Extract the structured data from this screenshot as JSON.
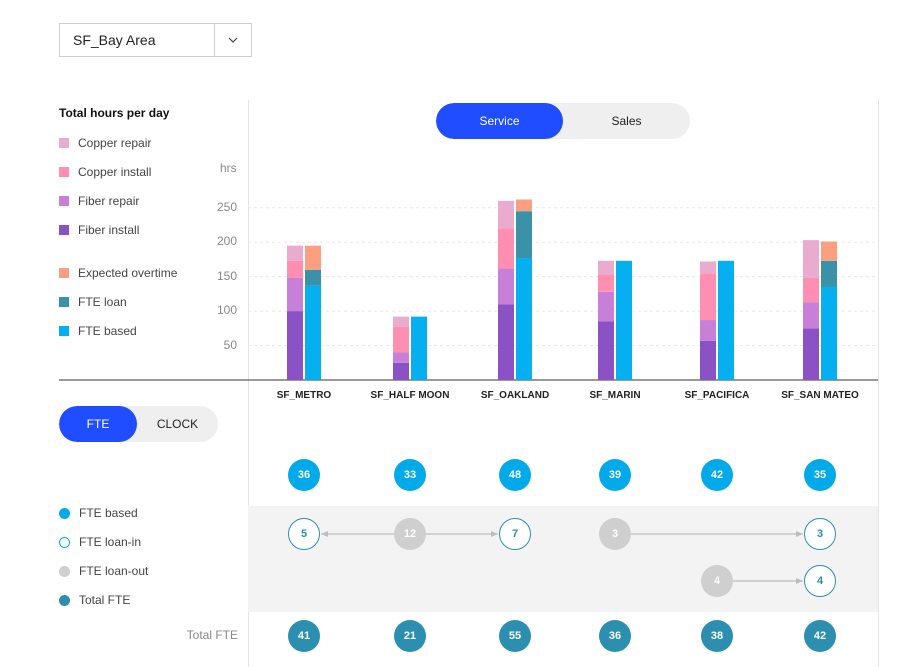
{
  "region_select": {
    "value": "SF_Bay Area"
  },
  "legend": {
    "title": "Total hours per day",
    "items": [
      {
        "label": "Copper repair",
        "color": "#e9abce"
      },
      {
        "label": "Copper install",
        "color": "#fe8fb2"
      },
      {
        "label": "Fiber repair",
        "color": "#c77fd8"
      },
      {
        "label": "Fiber install",
        "color": "#8a52c5"
      },
      {
        "label": "Expected overtime",
        "color": "#fa9f7f"
      },
      {
        "label": "FTE loan",
        "color": "#3a92a9"
      },
      {
        "label": "FTE based",
        "color": "#05aff0"
      }
    ]
  },
  "mode_toggle": {
    "options": [
      "Service",
      "Sales"
    ],
    "active": "Service"
  },
  "view_toggle": {
    "options": [
      "FTE",
      "CLOCK"
    ],
    "active": "FTE"
  },
  "fte_legend": {
    "items": [
      {
        "label": "FTE based",
        "kind": "base"
      },
      {
        "label": "FTE loan-in",
        "kind": "in"
      },
      {
        "label": "FTE loan-out",
        "kind": "out"
      },
      {
        "label": "Total FTE",
        "kind": "total"
      }
    ]
  },
  "total_label": "Total FTE",
  "chart_data": {
    "type": "bar",
    "ylabel": "hrs",
    "ylim": [
      0,
      300
    ],
    "yticks": [
      50,
      100,
      150,
      200,
      250
    ],
    "grid": true,
    "categories": [
      "SF_METRO",
      "SF_HALF MOON",
      "SF_OAKLAND",
      "SF_MARIN",
      "SF_PACIFICA",
      "SF_SAN MATEO"
    ],
    "demand_series": [
      {
        "name": "Fiber install",
        "color": "#8a52c5",
        "values": [
          100,
          25,
          110,
          85,
          57,
          75
        ]
      },
      {
        "name": "Fiber repair",
        "color": "#c77fd8",
        "values": [
          48,
          15,
          52,
          43,
          30,
          38
        ]
      },
      {
        "name": "Copper install",
        "color": "#fe8fb2",
        "values": [
          25,
          37,
          58,
          25,
          68,
          35
        ]
      },
      {
        "name": "Copper repair",
        "color": "#e9abce",
        "values": [
          22,
          15,
          40,
          20,
          17,
          55
        ]
      }
    ],
    "supply_series": [
      {
        "name": "FTE based",
        "color": "#05aff0",
        "values": [
          137,
          92,
          177,
          173,
          173,
          135
        ]
      },
      {
        "name": "FTE loan",
        "color": "#3a92a9",
        "values": [
          23,
          0,
          68,
          0,
          0,
          38
        ]
      },
      {
        "name": "Expected overtime",
        "color": "#fa9f7f",
        "values": [
          35,
          0,
          17,
          0,
          0,
          28
        ]
      }
    ]
  },
  "fte": {
    "based": [
      36,
      33,
      48,
      39,
      42,
      35
    ],
    "total": [
      41,
      21,
      55,
      36,
      38,
      42
    ],
    "loans": [
      {
        "row": 1,
        "col": 0,
        "value": 5,
        "kind": "in"
      },
      {
        "row": 1,
        "col": 1,
        "value": 12,
        "kind": "out"
      },
      {
        "row": 1,
        "col": 2,
        "value": 7,
        "kind": "in"
      },
      {
        "row": 1,
        "col": 3,
        "value": 3,
        "kind": "out"
      },
      {
        "row": 1,
        "col": 5,
        "value": 3,
        "kind": "in"
      },
      {
        "row": 2,
        "col": 4,
        "value": 4,
        "kind": "out"
      },
      {
        "row": 2,
        "col": 5,
        "value": 4,
        "kind": "in"
      }
    ],
    "transfers": [
      {
        "row": 1,
        "from": 1,
        "to": 0
      },
      {
        "row": 1,
        "from": 1,
        "to": 2
      },
      {
        "row": 1,
        "from": 3,
        "to": 5
      },
      {
        "row": 2,
        "from": 4,
        "to": 5
      }
    ]
  }
}
